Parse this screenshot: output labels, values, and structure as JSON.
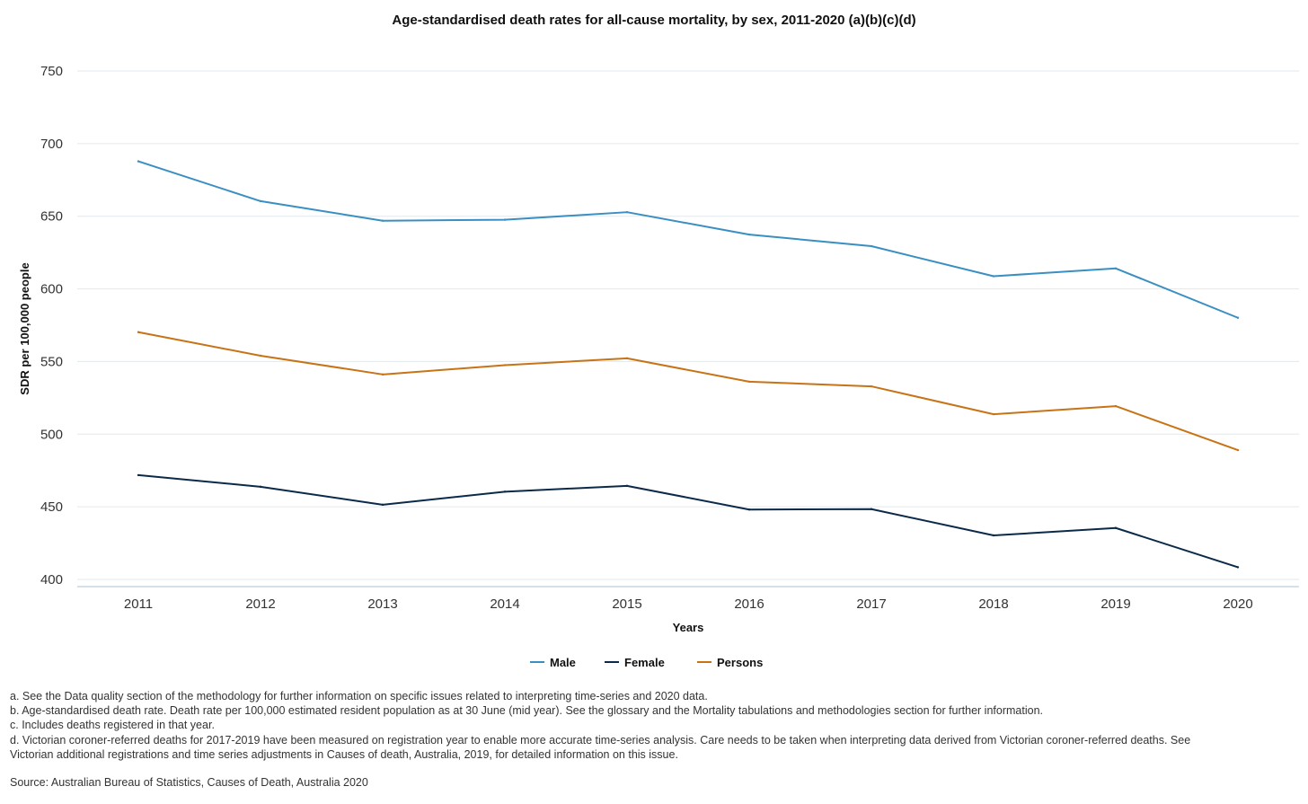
{
  "chart_data": {
    "type": "line",
    "title": "Age-standardised death rates for all-cause mortality, by sex, 2011-2020 (a)(b)(c)(d)",
    "xlabel": "Years",
    "ylabel": "SDR per 100,000 people",
    "ylim": [
      400,
      750
    ],
    "yticks": [
      "400",
      "450",
      "500",
      "550",
      "600",
      "650",
      "700",
      "750"
    ],
    "categories": [
      "2011",
      "2012",
      "2013",
      "2014",
      "2015",
      "2016",
      "2017",
      "2018",
      "2019",
      "2020"
    ],
    "grid": "horizontal",
    "legend_position": "bottom-center",
    "series": [
      {
        "name": "Male",
        "color": "#3a8fc2",
        "values": [
          687.8,
          660.4,
          646.9,
          647.6,
          652.8,
          637.4,
          629.4,
          608.7,
          614.1,
          580.1
        ]
      },
      {
        "name": "Female",
        "color": "#0b2a4a",
        "values": [
          471.8,
          463.8,
          451.4,
          460.4,
          464.4,
          448.1,
          448.4,
          430.3,
          435.4,
          408.4
        ]
      },
      {
        "name": "Persons",
        "color": "#c77316",
        "values": [
          570.2,
          554.0,
          541.1,
          547.5,
          552.2,
          536.1,
          532.9,
          513.7,
          519.3,
          489.0
        ]
      }
    ]
  },
  "notes": [
    "a. See the Data quality section of the methodology for further information on specific issues related to interpreting time-series and 2020 data.",
    "b. Age-standardised death rate. Death rate per 100,000 estimated resident population as at 30 June (mid year). See the glossary and the Mortality tabulations and methodologies section for further information.",
    "c. Includes deaths registered in that year.",
    "d. Victorian coroner-referred deaths for 2017-2019 have been measured on registration year to enable more accurate time-series analysis. Care needs to be taken when interpreting data derived from Victorian coroner-referred deaths. See",
    "Victorian additional registrations and time series adjustments in Causes of death, Australia, 2019, for detailed information on this issue."
  ],
  "source": "Source: Australian Bureau of Statistics, Causes of Death, Australia 2020"
}
